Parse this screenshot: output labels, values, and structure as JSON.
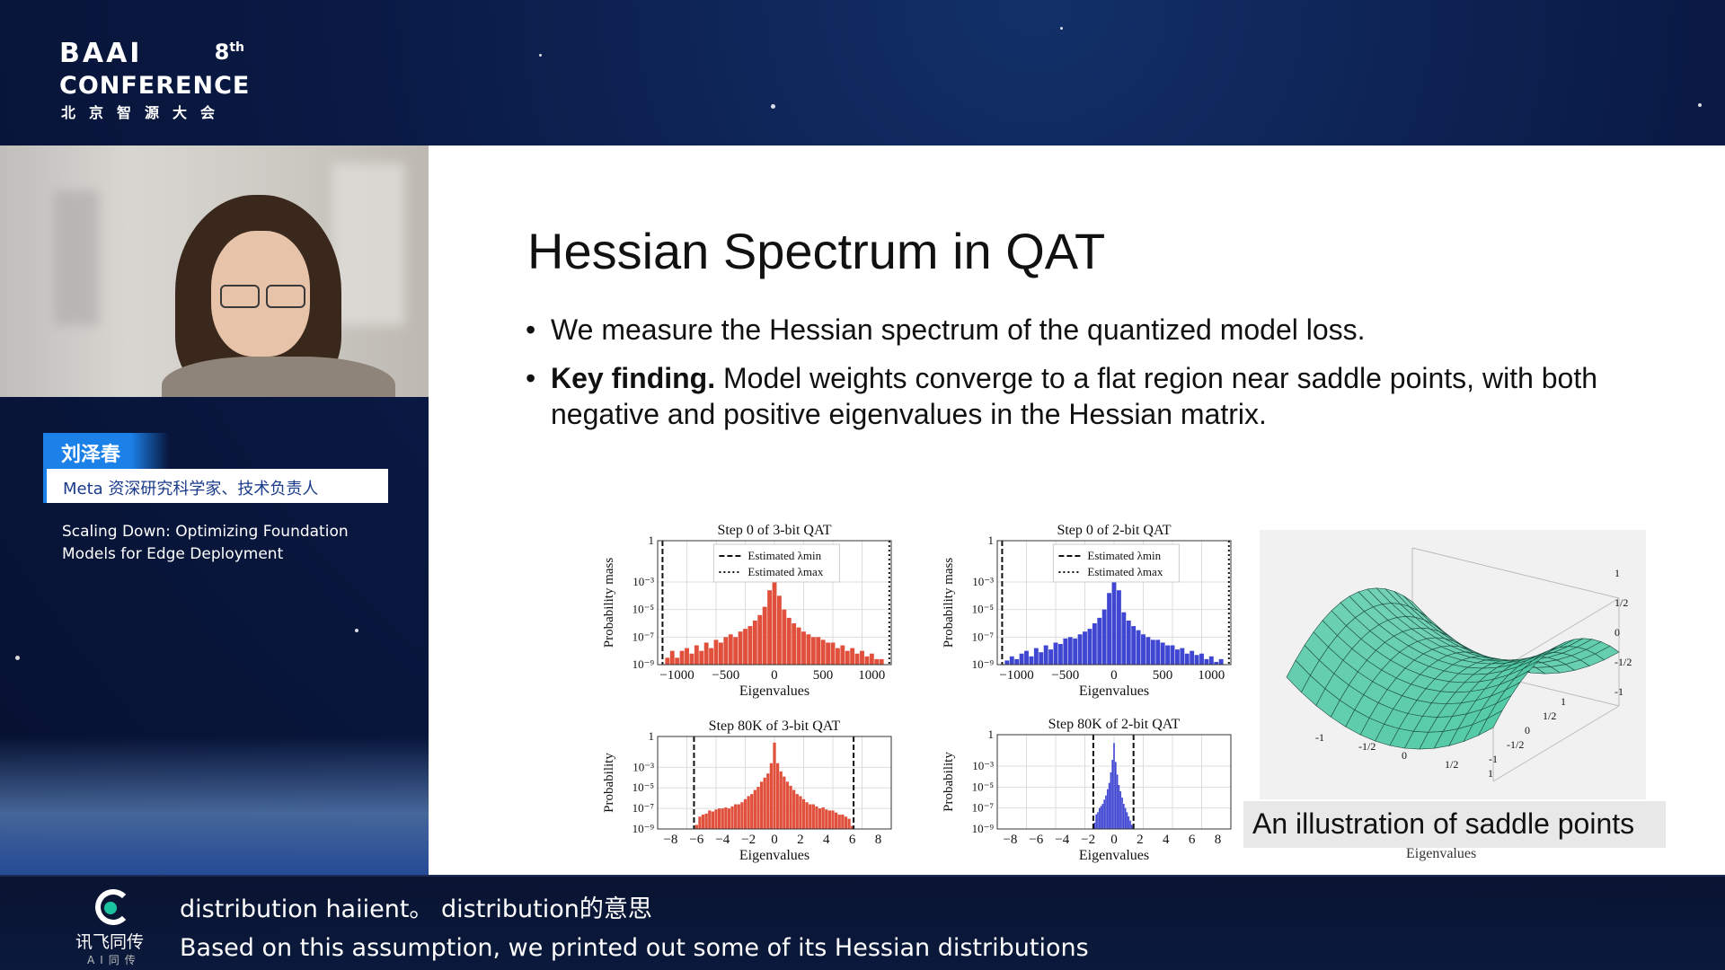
{
  "logo": {
    "brand": "BAAI",
    "edition": "8",
    "edition_suffix": "th",
    "conference": "CONFERENCE",
    "chinese": "北京智源大会"
  },
  "speaker": {
    "name": "刘泽春",
    "title": "Meta 资深研究科学家、技术负责人",
    "talk_title": "Scaling Down: Optimizing Foundation Models for Edge Deployment"
  },
  "slide": {
    "title": "Hessian Spectrum in QAT",
    "bullets": [
      {
        "bold": "",
        "text": "We measure the Hessian spectrum of the quantized model loss."
      },
      {
        "bold": "Key finding.",
        "text": " Model weights converge to a flat region near saddle points, with both negative and positive eigenvalues in the Hessian matrix."
      }
    ],
    "caption": "An illustration of saddle points",
    "caption_under": "Eigenvalues"
  },
  "chart_data": [
    {
      "type": "bar",
      "title": "Step 0 of 3-bit QAT",
      "xlabel": "Eigenvalues",
      "ylabel": "Probability mass",
      "color": "#e0503c",
      "x_ticks": [
        "−1000",
        "−500",
        "0",
        "500",
        "1000"
      ],
      "y_ticks": [
        "1",
        "10⁻³",
        "10⁻⁵",
        "10⁻⁷",
        "10⁻⁹"
      ],
      "xlim": [
        -1200,
        1200
      ],
      "legend": [
        "Estimated λmin",
        "Estimated λmax"
      ],
      "lambda_min": -1150,
      "lambda_max": 1180,
      "x": [
        -1100,
        -1050,
        -1000,
        -950,
        -900,
        -850,
        -800,
        -750,
        -700,
        -650,
        -600,
        -550,
        -500,
        -450,
        -400,
        -350,
        -300,
        -250,
        -200,
        -150,
        -100,
        -50,
        0,
        50,
        100,
        150,
        200,
        250,
        300,
        350,
        400,
        450,
        500,
        550,
        600,
        650,
        700,
        750,
        800,
        850,
        900,
        950,
        1000,
        1050,
        1100
      ],
      "values": [
        -8.5,
        -8,
        -8.5,
        -8,
        -7.8,
        -8.2,
        -7.6,
        -8,
        -7.4,
        -7.8,
        -7.2,
        -7.4,
        -7,
        -6.8,
        -7,
        -6.6,
        -6.4,
        -6.2,
        -5.8,
        -5.4,
        -4.8,
        -3.6,
        -1.5,
        -4,
        -5,
        -5.6,
        -6,
        -6.3,
        -6.6,
        -6.8,
        -7,
        -7,
        -7.2,
        -7.4,
        -7.4,
        -7.8,
        -7.6,
        -8,
        -7.8,
        -8.2,
        -8,
        -8.4,
        -8.2,
        -8.6,
        -8.6
      ]
    },
    {
      "type": "bar",
      "title": "Step 0 of 2-bit QAT",
      "xlabel": "Eigenvalues",
      "ylabel": "Probability mass",
      "color": "#3f46d2",
      "x_ticks": [
        "−1000",
        "−500",
        "0",
        "500",
        "1000"
      ],
      "y_ticks": [
        "1",
        "10⁻³",
        "10⁻⁵",
        "10⁻⁷",
        "10⁻⁹"
      ],
      "xlim": [
        -1200,
        1200
      ],
      "legend": [
        "Estimated λmin",
        "Estimated λmax"
      ],
      "lambda_min": -1150,
      "lambda_max": 1180,
      "x": [
        -1100,
        -1050,
        -1000,
        -950,
        -900,
        -850,
        -800,
        -750,
        -700,
        -650,
        -600,
        -550,
        -500,
        -450,
        -400,
        -350,
        -300,
        -250,
        -200,
        -150,
        -100,
        -50,
        0,
        50,
        100,
        150,
        200,
        250,
        300,
        350,
        400,
        450,
        500,
        550,
        600,
        650,
        700,
        750,
        800,
        850,
        900,
        950,
        1000,
        1050,
        1100
      ],
      "values": [
        -8.7,
        -8.4,
        -8.6,
        -8.2,
        -8,
        -8.4,
        -7.8,
        -8.1,
        -7.6,
        -7.9,
        -7.4,
        -7.5,
        -7.1,
        -7,
        -7.1,
        -6.8,
        -6.6,
        -6.4,
        -6,
        -5.6,
        -5,
        -3.8,
        -1.2,
        -3.6,
        -5.2,
        -5.8,
        -6.2,
        -6.5,
        -6.8,
        -7,
        -7.2,
        -7.2,
        -7.4,
        -7.6,
        -7.6,
        -7.9,
        -7.8,
        -8.2,
        -8,
        -8.3,
        -8.2,
        -8.6,
        -8.4,
        -8.8,
        -8.6
      ]
    },
    {
      "type": "bar",
      "title": "Step 80K of 3-bit QAT",
      "xlabel": "Eigenvalues",
      "ylabel": "Probability",
      "color": "#e0503c",
      "x_ticks": [
        "−8",
        "−6",
        "−4",
        "−2",
        "0",
        "2",
        "4",
        "6",
        "8"
      ],
      "y_ticks": [
        "1",
        "10⁻³",
        "10⁻⁵",
        "10⁻⁷",
        "10⁻⁹"
      ],
      "xlim": [
        -9,
        9
      ],
      "lambda_min": -6.2,
      "lambda_max": 6.1,
      "x": [
        -6,
        -5.75,
        -5.5,
        -5.25,
        -5,
        -4.75,
        -4.5,
        -4.25,
        -4,
        -3.75,
        -3.5,
        -3.25,
        -3,
        -2.75,
        -2.5,
        -2.25,
        -2,
        -1.75,
        -1.5,
        -1.25,
        -1,
        -0.75,
        -0.5,
        -0.25,
        0,
        0.25,
        0.5,
        0.75,
        1,
        1.25,
        1.5,
        1.75,
        2,
        2.25,
        2.5,
        2.75,
        3,
        3.25,
        3.5,
        3.75,
        4,
        4.25,
        4.5,
        4.75,
        5,
        5.25,
        5.5,
        5.75,
        6
      ],
      "values": [
        -8.6,
        -7.8,
        -7.6,
        -7.5,
        -7.2,
        -7.3,
        -7.1,
        -7,
        -7,
        -6.9,
        -7,
        -6.8,
        -6.6,
        -6.6,
        -6.4,
        -6.1,
        -5.8,
        -5.6,
        -5.2,
        -4.9,
        -4.4,
        -4,
        -3.6,
        -2.6,
        -0.6,
        -2.6,
        -3.4,
        -3.9,
        -4.4,
        -4.8,
        -5.2,
        -5.6,
        -5.8,
        -6.1,
        -6.4,
        -6.6,
        -6.6,
        -6.8,
        -7,
        -6.9,
        -7.1,
        -7.2,
        -7.2,
        -7.4,
        -7.6,
        -7.6,
        -7.8,
        -8,
        -8.7
      ]
    },
    {
      "type": "bar",
      "title": "Step 80K of 2-bit QAT",
      "xlabel": "Eigenvalues",
      "ylabel": "Probability",
      "color": "#3f46d2",
      "x_ticks": [
        "−8",
        "−6",
        "−4",
        "−2",
        "0",
        "2",
        "4",
        "6",
        "8"
      ],
      "y_ticks": [
        "1",
        "10⁻³",
        "10⁻⁵",
        "10⁻⁷",
        "10⁻⁹"
      ],
      "xlim": [
        -9,
        9
      ],
      "lambda_min": -1.6,
      "lambda_max": 1.5,
      "x": [
        -1.5,
        -1.375,
        -1.25,
        -1.125,
        -1,
        -0.875,
        -0.75,
        -0.625,
        -0.5,
        -0.375,
        -0.25,
        -0.125,
        0,
        0.125,
        0.25,
        0.375,
        0.5,
        0.625,
        0.75,
        0.875,
        1,
        1.125,
        1.25,
        1.375
      ],
      "values": [
        -8.4,
        -7.6,
        -7.4,
        -7,
        -6.8,
        -6.6,
        -6.2,
        -5.8,
        -5.2,
        -4.6,
        -3.6,
        -2.4,
        -0.8,
        -2.6,
        -3.8,
        -4.8,
        -5.4,
        -6,
        -6.6,
        -7,
        -7.4,
        -7.8,
        -8.2,
        -8.6
      ]
    }
  ],
  "saddle": {
    "x_ticks": [
      "-1",
      "-1/2",
      "0",
      "1/2",
      "1"
    ],
    "y_ticks": [
      "1",
      "1/2",
      "0",
      "-1/2",
      "-1"
    ],
    "z_ticks": [
      "1",
      "1/2",
      "0",
      "-1/2",
      "-1"
    ],
    "surface_color": "#4fc9a4"
  },
  "subtitles": {
    "line1": "distribution haiient。 distribution的意思",
    "line2": "Based on this assumption, we printed out some of its Hessian distributions"
  },
  "ifly": {
    "name": "讯飞同传",
    "sub": "AI同传"
  }
}
